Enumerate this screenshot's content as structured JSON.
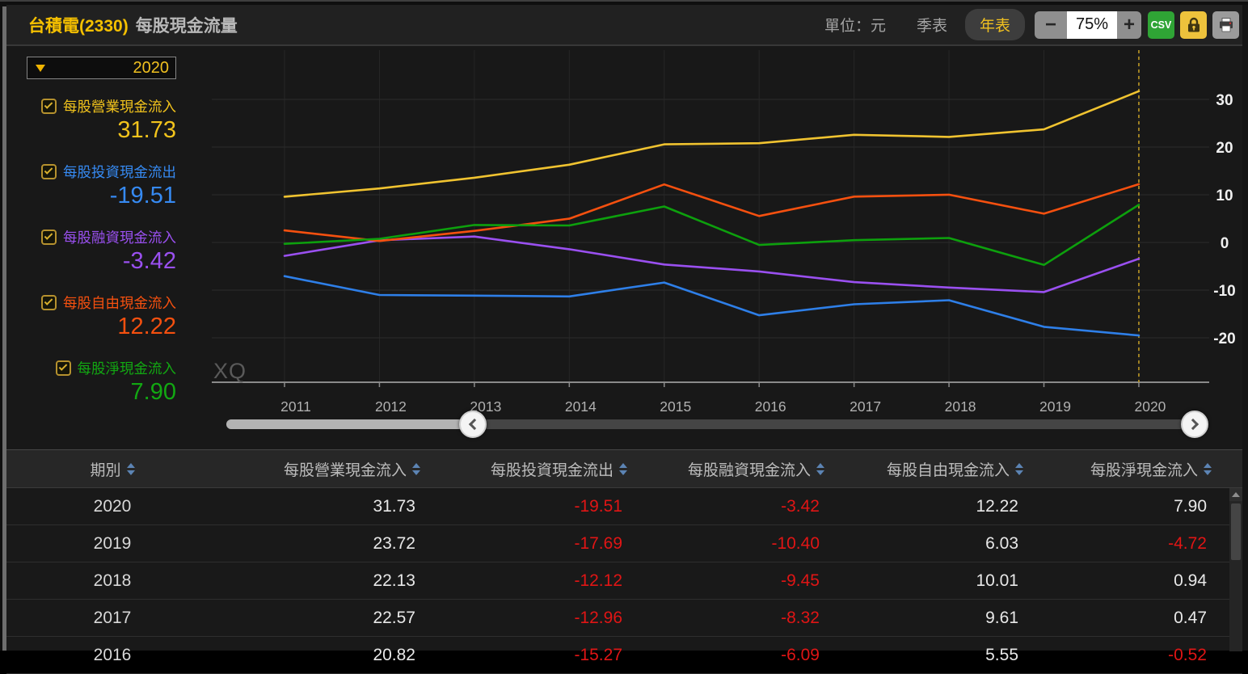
{
  "header": {
    "stock": "台積電(2330)",
    "title": "每股現金流量",
    "unit_label": "單位：元",
    "quarter_tab": "季表",
    "year_tab": "年表",
    "zoom_out": "−",
    "zoom_value": "75%",
    "zoom_in": "+",
    "csv_label": "CSV"
  },
  "sidebar": {
    "year_selector": "2020",
    "legend": [
      {
        "label": "每股營業現金流入",
        "value": "31.73",
        "color": "#f2c31c"
      },
      {
        "label": "每股投資現金流出",
        "value": "-19.51",
        "color": "#368af2"
      },
      {
        "label": "每股融資現金流入",
        "value": "-3.42",
        "color": "#9a50f0"
      },
      {
        "label": "每股自由現金流入",
        "value": "12.22",
        "color": "#f5500f"
      },
      {
        "label": "每股淨現金流入",
        "value": "7.90",
        "color": "#12a812"
      }
    ]
  },
  "chart_data": {
    "type": "line",
    "title": "台積電(2330) 每股現金流量",
    "x": [
      "2011",
      "2012",
      "2013",
      "2014",
      "2015",
      "2016",
      "2017",
      "2018",
      "2019",
      "2020"
    ],
    "yticks": [
      30,
      20,
      10,
      0,
      -10,
      -20
    ],
    "ylim": [
      -29,
      40
    ],
    "grid": true,
    "legend_position": "left",
    "selected_year": "2020",
    "selected_line_color": "#c9a227",
    "watermark": "XQ",
    "series": [
      {
        "id": "operating",
        "name": "每股營業現金流入",
        "color": "#f0c330",
        "values": [
          9.59,
          11.32,
          13.57,
          16.31,
          20.58,
          20.82,
          22.57,
          22.13,
          23.72,
          31.73
        ]
      },
      {
        "id": "investing",
        "name": "每股投資現金流出",
        "color": "#2e7fe8",
        "values": [
          -7.06,
          -11.01,
          -11.15,
          -11.33,
          -8.41,
          -15.27,
          -12.96,
          -12.12,
          -17.69,
          -19.51
        ]
      },
      {
        "id": "financing",
        "name": "每股融資現金流入",
        "color": "#9a50f0",
        "values": [
          -2.81,
          0.45,
          1.24,
          -1.42,
          -4.63,
          -6.09,
          -8.32,
          -9.45,
          -10.4,
          -3.42
        ]
      },
      {
        "id": "free",
        "name": "每股自由現金流入",
        "color": "#f5500f",
        "values": [
          2.53,
          0.31,
          2.42,
          4.98,
          12.17,
          5.55,
          9.61,
          10.01,
          6.03,
          12.22
        ]
      },
      {
        "id": "net",
        "name": "每股淨現金流入",
        "color": "#0da00d",
        "values": [
          -0.28,
          0.76,
          3.66,
          3.56,
          7.54,
          -0.52,
          0.47,
          0.94,
          -4.72,
          7.9
        ]
      }
    ]
  },
  "table": {
    "columns": [
      "期別",
      "每股營業現金流入",
      "每股投資現金流出",
      "每股融資現金流入",
      "每股自由現金流入",
      "每股淨現金流入"
    ],
    "rows": [
      {
        "period": "2020",
        "values": [
          "31.73",
          "-19.51",
          "-3.42",
          "12.22",
          "7.90"
        ]
      },
      {
        "period": "2019",
        "values": [
          "23.72",
          "-17.69",
          "-10.40",
          "6.03",
          "-4.72"
        ]
      },
      {
        "period": "2018",
        "values": [
          "22.13",
          "-12.12",
          "-9.45",
          "10.01",
          "0.94"
        ]
      },
      {
        "period": "2017",
        "values": [
          "22.57",
          "-12.96",
          "-8.32",
          "9.61",
          "0.47"
        ]
      },
      {
        "period": "2016",
        "values": [
          "20.82",
          "-15.27",
          "-6.09",
          "5.55",
          "-0.52"
        ],
        "partial": true
      }
    ]
  }
}
